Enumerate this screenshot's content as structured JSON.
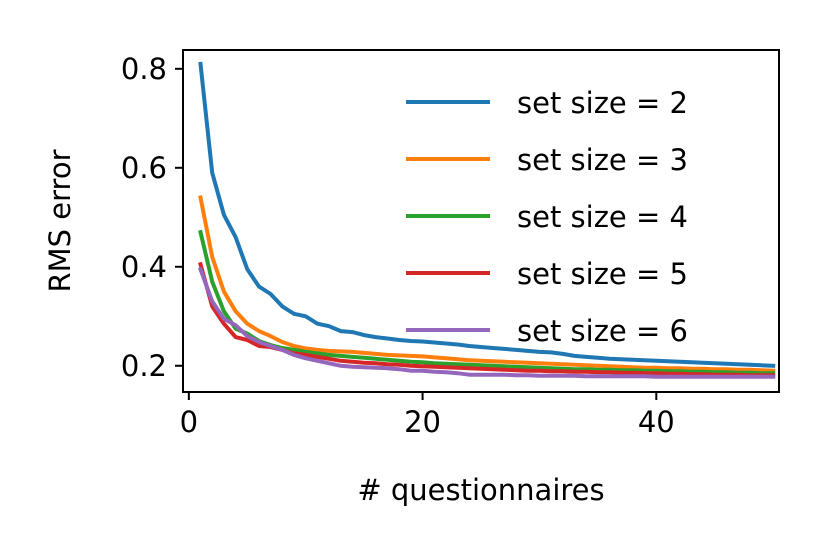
{
  "chart_data": {
    "type": "line",
    "title": "",
    "xlabel": "# questionnaires",
    "ylabel": "RMS error",
    "xlim": [
      -0.5,
      50.5
    ],
    "ylim": [
      0.147,
      0.838
    ],
    "xticks": [
      0,
      20,
      40
    ],
    "yticks": [
      0.2,
      0.4,
      0.6,
      0.8
    ],
    "xtick_labels": [
      "0",
      "20",
      "40"
    ],
    "ytick_labels": [
      "0.2",
      "0.4",
      "0.6",
      "0.8"
    ],
    "grid": false,
    "legend_position": "top-right",
    "x": [
      1,
      2,
      3,
      4,
      5,
      6,
      7,
      8,
      9,
      10,
      11,
      12,
      13,
      14,
      15,
      16,
      17,
      18,
      19,
      20,
      21,
      22,
      23,
      24,
      25,
      26,
      27,
      28,
      29,
      30,
      31,
      32,
      33,
      34,
      35,
      36,
      37,
      38,
      39,
      40,
      41,
      42,
      43,
      44,
      45,
      46,
      47,
      48,
      49,
      50
    ],
    "series": [
      {
        "name": "set size = 2",
        "color": "#1f77b4",
        "values": [
          0.81,
          0.59,
          0.505,
          0.46,
          0.395,
          0.36,
          0.345,
          0.32,
          0.305,
          0.3,
          0.285,
          0.28,
          0.27,
          0.268,
          0.262,
          0.258,
          0.255,
          0.252,
          0.25,
          0.249,
          0.247,
          0.245,
          0.243,
          0.24,
          0.238,
          0.236,
          0.234,
          0.232,
          0.23,
          0.228,
          0.227,
          0.224,
          0.22,
          0.218,
          0.216,
          0.214,
          0.213,
          0.212,
          0.211,
          0.21,
          0.209,
          0.208,
          0.207,
          0.206,
          0.205,
          0.204,
          0.203,
          0.202,
          0.201,
          0.2
        ]
      },
      {
        "name": "set size = 3",
        "color": "#ff7f0e",
        "values": [
          0.54,
          0.42,
          0.35,
          0.31,
          0.285,
          0.27,
          0.26,
          0.248,
          0.24,
          0.235,
          0.232,
          0.23,
          0.229,
          0.228,
          0.226,
          0.224,
          0.222,
          0.221,
          0.22,
          0.219,
          0.217,
          0.215,
          0.213,
          0.211,
          0.21,
          0.209,
          0.208,
          0.207,
          0.206,
          0.205,
          0.204,
          0.203,
          0.202,
          0.201,
          0.2,
          0.199,
          0.198,
          0.197,
          0.196,
          0.196,
          0.195,
          0.195,
          0.194,
          0.194,
          0.193,
          0.193,
          0.192,
          0.192,
          0.191,
          0.19
        ]
      },
      {
        "name": "set size = 4",
        "color": "#2ca02c",
        "values": [
          0.47,
          0.37,
          0.31,
          0.275,
          0.265,
          0.25,
          0.242,
          0.236,
          0.232,
          0.228,
          0.225,
          0.222,
          0.22,
          0.218,
          0.216,
          0.214,
          0.212,
          0.21,
          0.208,
          0.207,
          0.205,
          0.204,
          0.203,
          0.202,
          0.201,
          0.2,
          0.199,
          0.198,
          0.197,
          0.196,
          0.195,
          0.194,
          0.193,
          0.193,
          0.192,
          0.192,
          0.191,
          0.191,
          0.19,
          0.19,
          0.189,
          0.189,
          0.188,
          0.188,
          0.187,
          0.187,
          0.186,
          0.186,
          0.185,
          0.185
        ]
      },
      {
        "name": "set size = 5",
        "color": "#d62728",
        "values": [
          0.405,
          0.32,
          0.285,
          0.258,
          0.252,
          0.24,
          0.238,
          0.232,
          0.225,
          0.222,
          0.218,
          0.214,
          0.21,
          0.208,
          0.206,
          0.205,
          0.203,
          0.202,
          0.2,
          0.199,
          0.198,
          0.197,
          0.196,
          0.195,
          0.194,
          0.193,
          0.192,
          0.191,
          0.19,
          0.19,
          0.189,
          0.189,
          0.188,
          0.188,
          0.187,
          0.187,
          0.186,
          0.186,
          0.185,
          0.185,
          0.184,
          0.184,
          0.183,
          0.183,
          0.182,
          0.182,
          0.182,
          0.181,
          0.181,
          0.181
        ]
      },
      {
        "name": "set size = 6",
        "color": "#9467bd",
        "values": [
          0.395,
          0.33,
          0.295,
          0.282,
          0.26,
          0.248,
          0.24,
          0.232,
          0.222,
          0.215,
          0.21,
          0.205,
          0.2,
          0.198,
          0.197,
          0.196,
          0.195,
          0.193,
          0.19,
          0.19,
          0.188,
          0.187,
          0.185,
          0.182,
          0.182,
          0.182,
          0.182,
          0.181,
          0.181,
          0.18,
          0.18,
          0.18,
          0.18,
          0.179,
          0.179,
          0.179,
          0.179,
          0.179,
          0.179,
          0.178,
          0.178,
          0.178,
          0.178,
          0.178,
          0.178,
          0.178,
          0.178,
          0.178,
          0.178,
          0.178
        ]
      }
    ]
  }
}
